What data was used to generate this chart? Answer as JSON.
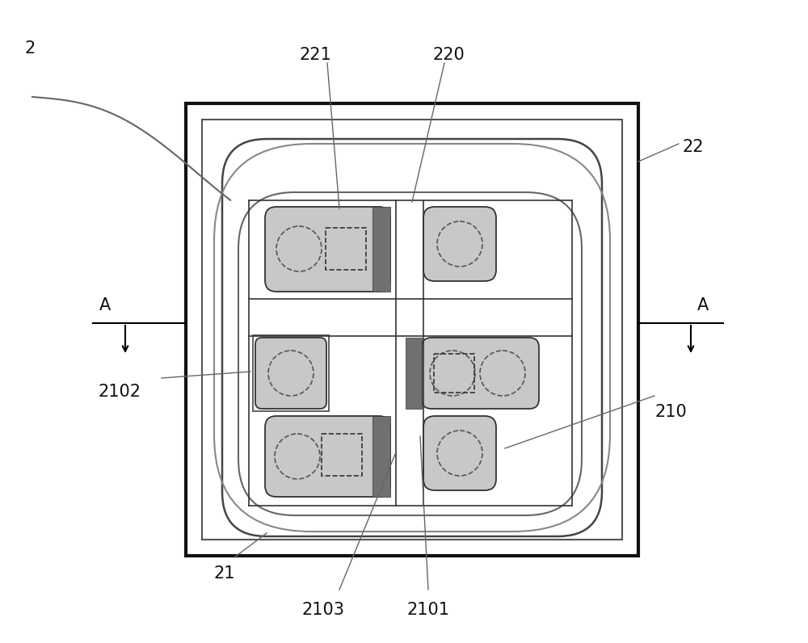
{
  "fig_w": 10.0,
  "fig_h": 7.96,
  "light_gray": "#c8c8c8",
  "dark_gray": "#707070",
  "edge_color": "#333333",
  "line_color": "#555555",
  "label_color": "#111111",
  "label_fontsize": 15
}
